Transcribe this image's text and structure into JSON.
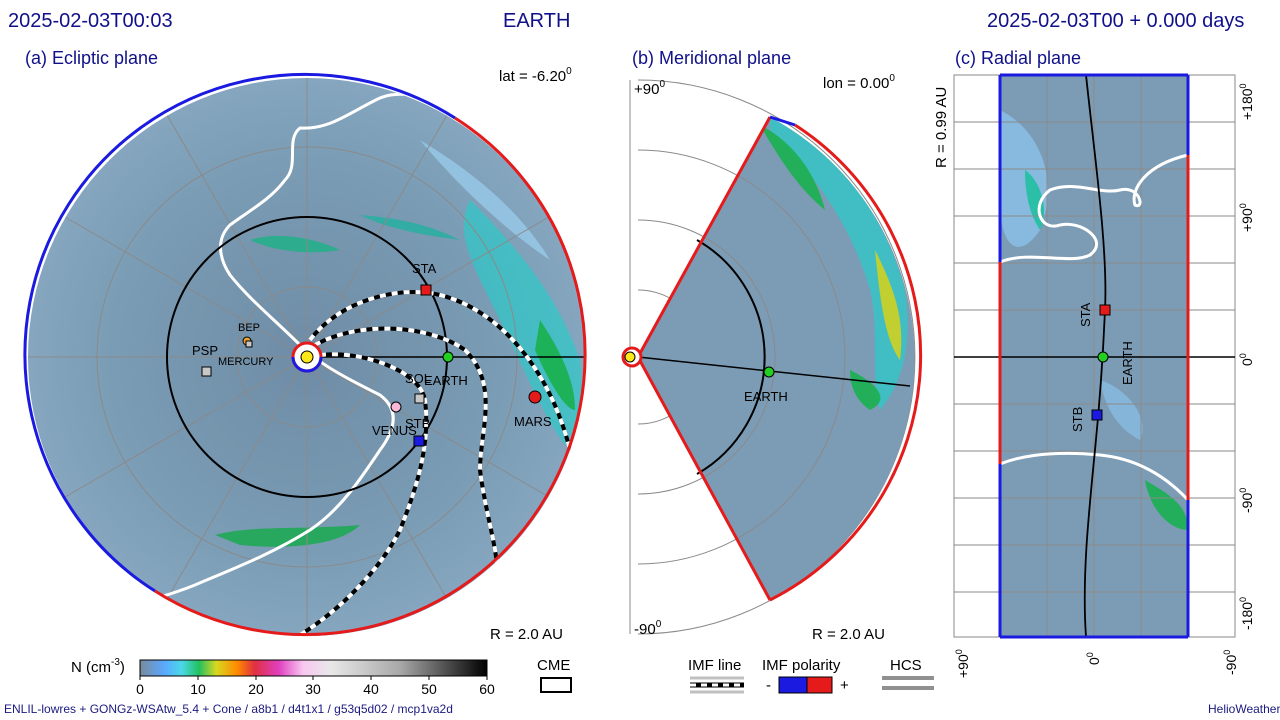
{
  "header": {
    "datetime_left": "2025-02-03T00:03",
    "target": "EARTH",
    "datetime_right": "2025-02-03T00 +  0.000 days"
  },
  "panels": {
    "ecliptic": {
      "title": "(a) Ecliptic plane",
      "lat_prefix": "lat = -6.20",
      "lat_sup": "0",
      "radius": "R = 2.0 AU"
    },
    "meridional": {
      "title": "(b) Meridional plane",
      "lon_prefix": "lon = 0.00",
      "lon_sup": "0",
      "top_prefix": "+90",
      "top_sup": "0",
      "bottom_prefix": "-90",
      "bottom_sup": "0",
      "radius": "R = 2.0 AU"
    },
    "radial": {
      "title": "(c) Radial plane",
      "r_label": "R = 0.99 AU",
      "right_ticks": [
        {
          "p": "+180",
          "s": "0"
        },
        {
          "p": "+90",
          "s": "0"
        },
        {
          "p": "0",
          "s": "0"
        },
        {
          "p": "-90",
          "s": "0"
        },
        {
          "p": "-180",
          "s": "0"
        }
      ],
      "bottom_ticks": [
        {
          "p": "+90",
          "s": "0"
        },
        {
          "p": "0",
          "s": "0"
        },
        {
          "p": "-90",
          "s": "0"
        }
      ]
    }
  },
  "bodies": {
    "sta": "STA",
    "stb": "STB",
    "earth": "EARTH",
    "mars": "MARS",
    "venus": "VENUS",
    "mercury": "MERCURY",
    "psp": "PSP",
    "bep": "BEP",
    "solo": "SOL"
  },
  "colorbar": {
    "label_prefix": "N (cm",
    "label_sup": "-3",
    "label_suffix": ")",
    "ticks": [
      "0",
      "10",
      "20",
      "30",
      "40",
      "50",
      "60"
    ],
    "cme_label": "CME"
  },
  "legend": {
    "imf_line": "IMF line",
    "imf_polarity": "IMF polarity",
    "minus": "-",
    "plus": "+",
    "hcs": "HCS"
  },
  "footer": {
    "left": "ENLIL-lowres + GONGz-WSAtw_5.4 + Cone / a8b1 / d4t1x1 / g53q5d02 / mcp1va2d",
    "right": "HelioWeather"
  },
  "colors": {
    "positive": "#e51b1b",
    "negative": "#1a1ae0",
    "background_field": "#7c98a8",
    "title": "#10108a"
  }
}
